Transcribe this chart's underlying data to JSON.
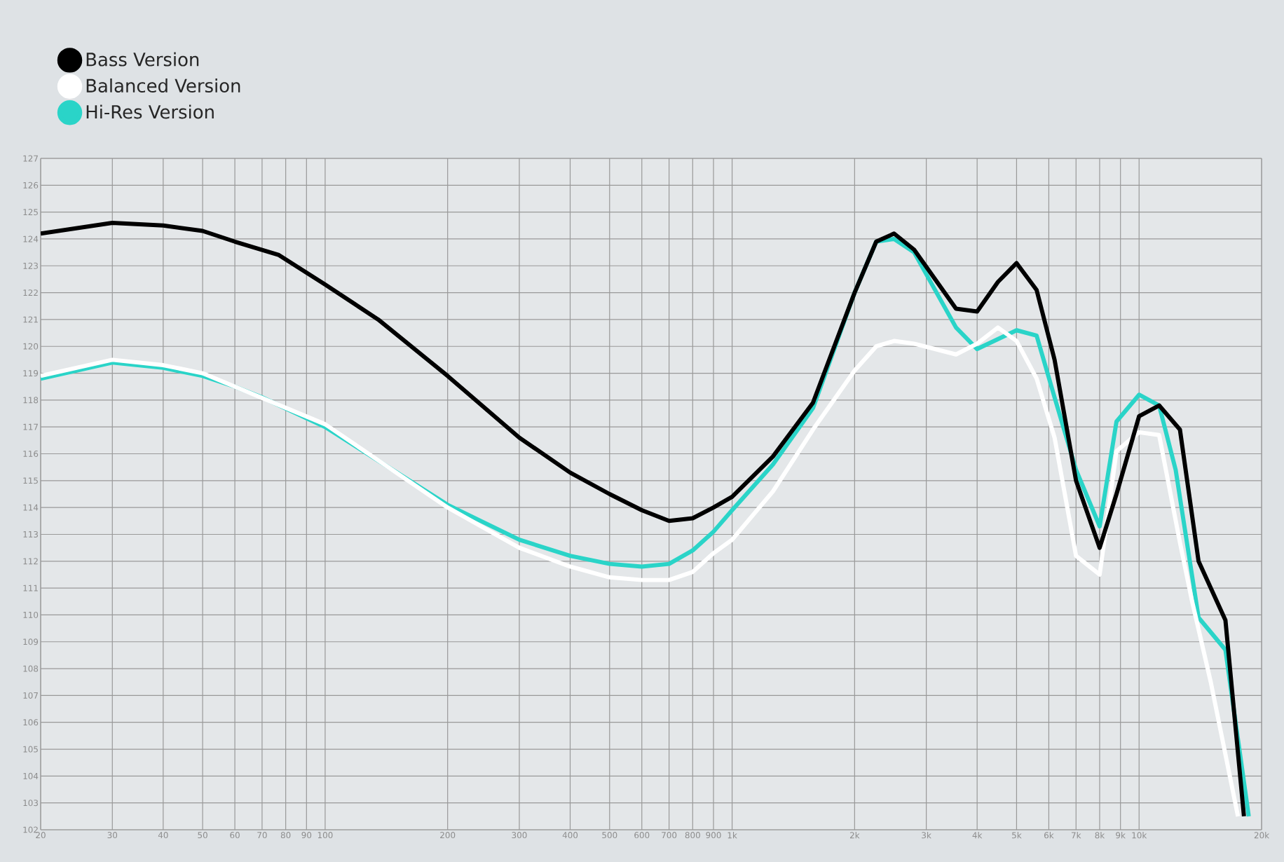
{
  "chart_data": {
    "type": "line",
    "x": [
      20,
      30,
      40,
      50,
      60,
      77,
      100,
      135,
      200,
      300,
      400,
      500,
      600,
      700,
      800,
      900,
      1000,
      1260,
      1580,
      2000,
      2260,
      2500,
      2800,
      3550,
      4000,
      4500,
      5000,
      5600,
      6200,
      7000,
      8000,
      8800,
      10000,
      11200,
      12600,
      14000,
      16300,
      18100
    ],
    "series": [
      {
        "name": "Bass Version",
        "color": "#000000",
        "values": [
          124.2,
          124.6,
          124.5,
          124.3,
          123.9,
          123.4,
          122.3,
          121.0,
          118.9,
          116.6,
          115.3,
          114.5,
          113.9,
          113.5,
          113.6,
          114.0,
          114.4,
          115.9,
          117.9,
          122.0,
          123.9,
          124.2,
          123.6,
          121.4,
          121.3,
          122.4,
          123.1,
          122.1,
          119.5,
          115.0,
          112.5,
          114.5,
          117.4,
          117.8,
          116.9,
          112.0,
          109.8,
          102.5
        ]
      },
      {
        "name": "Balanced Version",
        "color": "#ffffff",
        "x": [
          20,
          30,
          40,
          50,
          100,
          200,
          300,
          400,
          500,
          600,
          700,
          800,
          900,
          1000,
          1260,
          1580,
          2000,
          2260,
          2500,
          2800,
          3550,
          4000,
          4500,
          5000,
          5600,
          6200,
          7000,
          8000,
          8800,
          10000,
          11200,
          12600,
          13500,
          15000,
          17500
        ],
        "values": [
          118.9,
          119.5,
          119.3,
          119.0,
          117.1,
          114.0,
          112.5,
          111.8,
          111.4,
          111.3,
          111.3,
          111.6,
          112.3,
          112.8,
          114.6,
          116.9,
          119.1,
          120.0,
          120.2,
          120.1,
          119.7,
          120.1,
          120.7,
          120.2,
          118.8,
          116.6,
          112.2,
          111.5,
          116.1,
          116.8,
          116.7,
          112.7,
          110.5,
          107.5,
          102.5
        ]
      },
      {
        "name": "Hi-Res Version",
        "color": "#2ad4c8",
        "x": [
          20,
          30,
          40,
          50,
          60,
          70,
          100,
          200,
          300,
          400,
          500,
          600,
          700,
          800,
          900,
          1000,
          1260,
          1580,
          2000,
          2260,
          2500,
          2800,
          3550,
          4000,
          5000,
          5600,
          6200,
          7000,
          8000,
          8800,
          10000,
          11200,
          12300,
          14000,
          16300,
          18600
        ],
        "values": [
          118.8,
          119.4,
          119.2,
          118.9,
          118.5,
          118.1,
          117.0,
          114.1,
          112.8,
          112.2,
          111.9,
          111.8,
          111.9,
          112.4,
          113.1,
          113.9,
          115.6,
          117.7,
          122.0,
          123.9,
          124.0,
          123.5,
          120.7,
          119.9,
          120.6,
          120.4,
          118.1,
          115.4,
          113.3,
          117.2,
          118.2,
          117.8,
          115.4,
          109.9,
          108.7,
          102.5
        ]
      }
    ],
    "log": "x",
    "xlim": [
      20,
      20000
    ],
    "ylim": [
      102,
      127
    ],
    "xticks": [
      20,
      30,
      40,
      50,
      60,
      70,
      80,
      90,
      100,
      200,
      300,
      400,
      500,
      600,
      700,
      800,
      900,
      {
        "value": 1000,
        "label": "1k"
      },
      {
        "value": 2000,
        "label": "2k"
      },
      {
        "value": 3000,
        "label": "3k"
      },
      {
        "value": 4000,
        "label": "4k"
      },
      {
        "value": 5000,
        "label": "5k"
      },
      {
        "value": 6000,
        "label": "6k"
      },
      {
        "value": 7000,
        "label": "7k"
      },
      {
        "value": 8000,
        "label": "8k"
      },
      {
        "value": 9000,
        "label": "9k"
      },
      {
        "value": 10000,
        "label": "10k"
      },
      {
        "value": 20000,
        "label": "20k"
      }
    ],
    "yticks": [
      102,
      103,
      104,
      105,
      106,
      107,
      108,
      109,
      110,
      111,
      112,
      113,
      114,
      115,
      116,
      117,
      118,
      119,
      120,
      121,
      122,
      123,
      124,
      125,
      126,
      127
    ],
    "grid": true,
    "legend": "top left",
    "marker": "none",
    "line_style": "solid"
  }
}
